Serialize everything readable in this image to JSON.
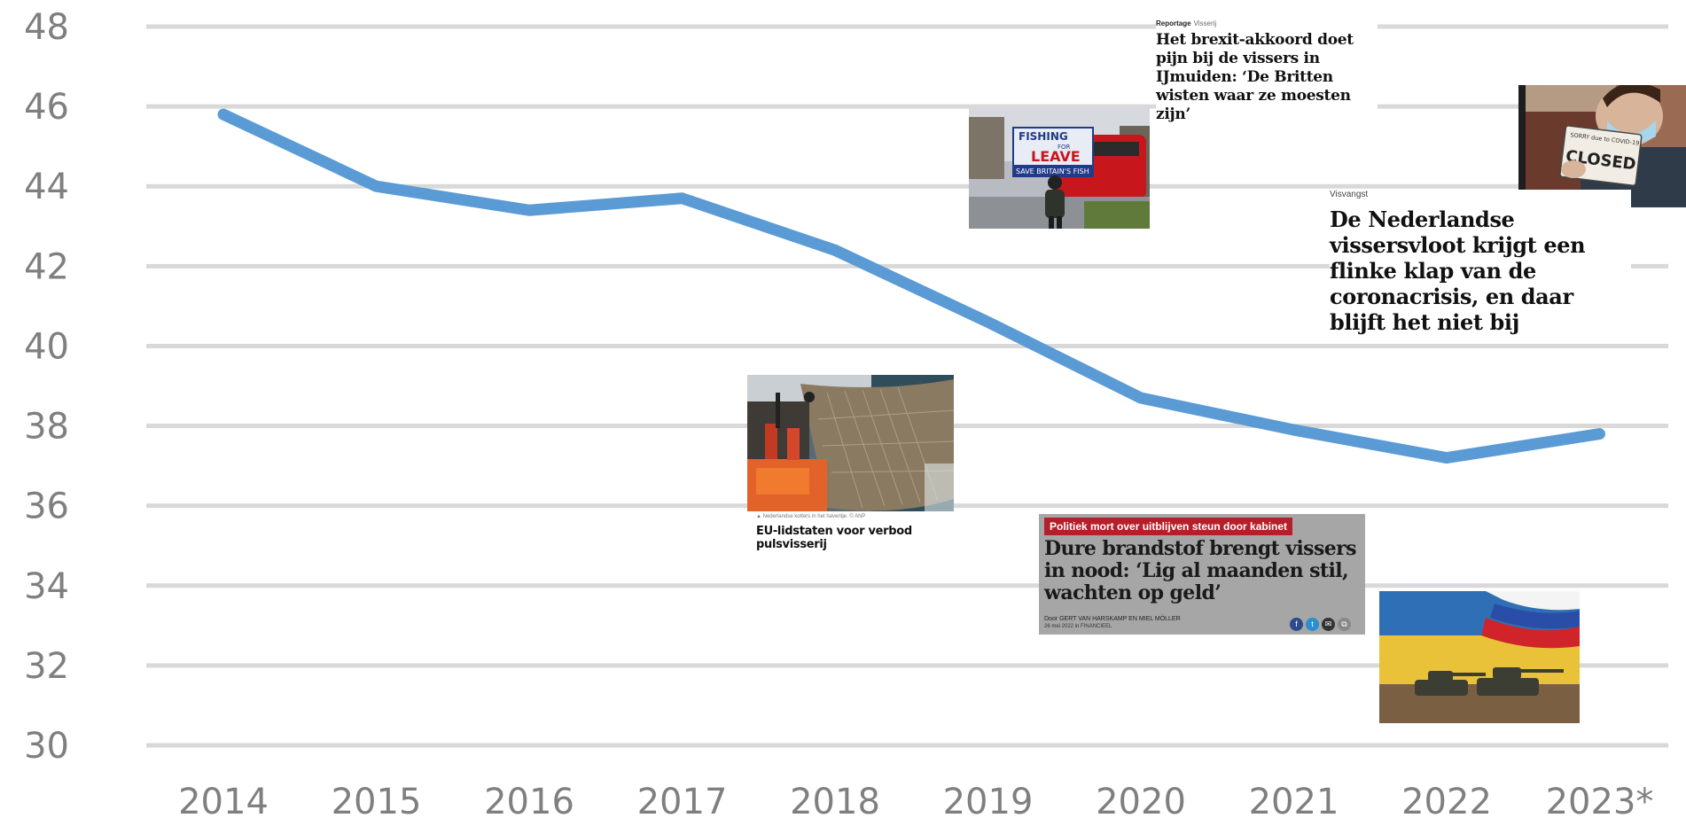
{
  "chart_data": {
    "type": "line",
    "categories": [
      "2014",
      "2015",
      "2016",
      "2017",
      "2018",
      "2019",
      "2020",
      "2021",
      "2022",
      "2023*"
    ],
    "series": [
      {
        "values": [
          45.8,
          44.0,
          43.4,
          43.7,
          42.4,
          40.6,
          38.7,
          37.9,
          37.2,
          37.8
        ]
      }
    ],
    "ylim": [
      30,
      48
    ],
    "yticks": [
      "30",
      "32",
      "34",
      "36",
      "38",
      "40",
      "42",
      "44",
      "46",
      "48"
    ],
    "grid": true,
    "legend": "none",
    "line_color": "#5b9bd5"
  },
  "annotations": {
    "brexit": {
      "kicker_label": "Reportage",
      "kicker_topic": "Visserij",
      "headline": "Het brexit-akkoord doet pijn bij de vissers in IJmuiden: ‘De Britten wisten waar ze moesten zijn’",
      "photo": {
        "sign_top": "FISHING",
        "sign_mid": "FOR",
        "sign_main": "LEAVE",
        "sign_bottom": "SAVE BRITAIN'S FISH"
      }
    },
    "corona": {
      "kicker": "Visvangst",
      "headline": "De Nederlandse vissersvloot krijgt een flinke klap van de coronacrisis, en daar blijft het niet bij",
      "photo": {
        "sign_top": "SORRY due to COVID-19",
        "sign_main": "CLOSED"
      }
    },
    "puls": {
      "caption": "▲ Nederlandse kotters in het haventje. © ANP",
      "headline": "EU-lidstaten voor verbod pulsvisserij"
    },
    "fuel": {
      "tag": "Politiek mort over uitblijven steun door kabinet",
      "headline": "Dure brandstof brengt vissers in nood: ‘Lig al maanden stil, wachten op geld’",
      "byline": "Door GERT VAN HARSKAMP EN MIEL MÖLLER",
      "date": "26 mei 2022 in FINANCIEEL"
    }
  }
}
